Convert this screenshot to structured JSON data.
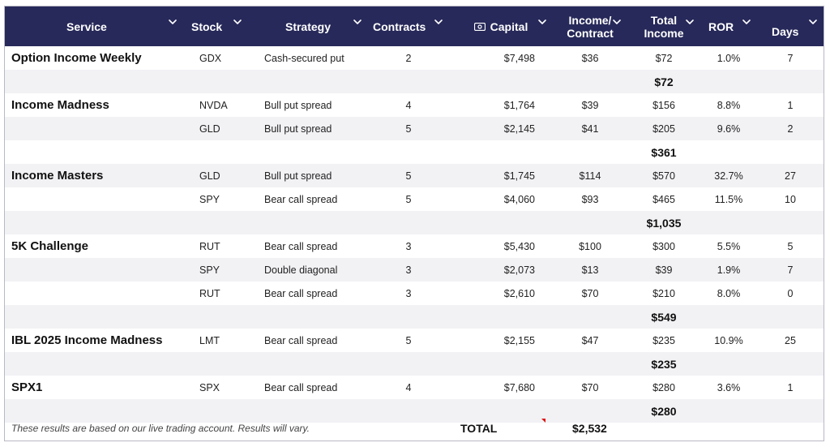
{
  "headers": {
    "service": "Service",
    "stock": "Stock",
    "strategy": "Strategy",
    "contracts": "Contracts",
    "capital": "Capital",
    "income_contract_1": "Income/",
    "income_contract_2": "Contract",
    "total_income_1": "Total",
    "total_income_2": "Income",
    "ror": "ROR",
    "days": "Days"
  },
  "rows": [
    {
      "type": "trade",
      "service": "Option Income Weekly",
      "stock": "GDX",
      "strategy": "Cash-secured put",
      "contracts": "2",
      "capital": "$7,498",
      "income_contract": "$36",
      "total_income": "$72",
      "ror": "1.0%",
      "days": "7"
    },
    {
      "type": "subtotal",
      "value": "$72"
    },
    {
      "type": "trade",
      "service": "Income Madness",
      "stock": "NVDA",
      "strategy": "Bull put spread",
      "contracts": "4",
      "capital": "$1,764",
      "income_contract": "$39",
      "total_income": "$156",
      "ror": "8.8%",
      "days": "1"
    },
    {
      "type": "trade",
      "service": "",
      "stock": "GLD",
      "strategy": "Bull put spread",
      "contracts": "5",
      "capital": "$2,145",
      "income_contract": "$41",
      "total_income": "$205",
      "ror": "9.6%",
      "days": "2"
    },
    {
      "type": "subtotal",
      "value": "$361"
    },
    {
      "type": "trade",
      "service": "Income Masters",
      "stock": "GLD",
      "strategy": "Bull put spread",
      "contracts": "5",
      "capital": "$1,745",
      "income_contract": "$114",
      "total_income": "$570",
      "ror": "32.7%",
      "days": "27"
    },
    {
      "type": "trade",
      "service": "",
      "stock": "SPY",
      "strategy": "Bear call spread",
      "contracts": "5",
      "capital": "$4,060",
      "income_contract": "$93",
      "total_income": "$465",
      "ror": "11.5%",
      "days": "10"
    },
    {
      "type": "subtotal",
      "value": "$1,035"
    },
    {
      "type": "trade",
      "service": "5K Challenge",
      "stock": "RUT",
      "strategy": "Bear call spread",
      "contracts": "3",
      "capital": "$5,430",
      "income_contract": "$100",
      "total_income": "$300",
      "ror": "5.5%",
      "days": "5"
    },
    {
      "type": "trade",
      "service": "",
      "stock": "SPY",
      "strategy": "Double diagonal",
      "contracts": "3",
      "capital": "$2,073",
      "income_contract": "$13",
      "total_income": "$39",
      "ror": "1.9%",
      "days": "7"
    },
    {
      "type": "trade",
      "service": "",
      "stock": "RUT",
      "strategy": "Bear call spread",
      "contracts": "3",
      "capital": "$2,610",
      "income_contract": "$70",
      "total_income": "$210",
      "ror": "8.0%",
      "days": "0"
    },
    {
      "type": "subtotal",
      "value": "$549"
    },
    {
      "type": "trade",
      "service": "IBL 2025 Income Madness",
      "stock": "LMT",
      "strategy": "Bear call spread",
      "contracts": "5",
      "capital": "$2,155",
      "income_contract": "$47",
      "total_income": "$235",
      "ror": "10.9%",
      "days": "25"
    },
    {
      "type": "subtotal",
      "value": "$235"
    },
    {
      "type": "trade",
      "service": "SPX1",
      "stock": "SPX",
      "strategy": "Bear call spread",
      "contracts": "4",
      "capital": "$7,680",
      "income_contract": "$70",
      "total_income": "$280",
      "ror": "3.6%",
      "days": "1"
    },
    {
      "type": "subtotal",
      "value": "$280"
    }
  ],
  "footer": {
    "note": "These results are based on our live trading account. Results will vary.",
    "total_label": "TOTAL",
    "total_value": "$2,532"
  },
  "colors": {
    "header_bg": "#27295a",
    "row_alt": "#f2f2f5",
    "marker": "#dd1111"
  },
  "icons": {
    "sort": "chevron-down-icon",
    "capital": "money-icon"
  }
}
